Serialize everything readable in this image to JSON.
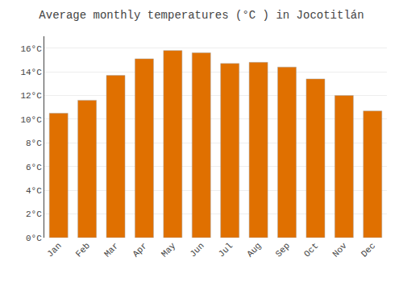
{
  "chart_data": {
    "type": "bar",
    "title": "Average monthly temperatures (°C ) in Jocotitlán",
    "categories": [
      "Jan",
      "Feb",
      "Mar",
      "Apr",
      "May",
      "Jun",
      "Jul",
      "Aug",
      "Sep",
      "Oct",
      "Nov",
      "Dec"
    ],
    "values": [
      10.5,
      11.6,
      13.7,
      15.1,
      15.8,
      15.6,
      14.7,
      14.8,
      14.4,
      13.4,
      12.0,
      10.7
    ],
    "color": "#E07000",
    "ylim": [
      0,
      17
    ],
    "yticks": [
      {
        "value": 0,
        "label": "0°C"
      },
      {
        "value": 2,
        "label": "2°C"
      },
      {
        "value": 4,
        "label": "4°C"
      },
      {
        "value": 6,
        "label": "6°C"
      },
      {
        "value": 8,
        "label": "8°C"
      },
      {
        "value": 10,
        "label": "10°C"
      },
      {
        "value": 12,
        "label": "12°C"
      },
      {
        "value": 14,
        "label": "14°C"
      },
      {
        "value": 16,
        "label": "16°C"
      }
    ],
    "grid": true
  }
}
